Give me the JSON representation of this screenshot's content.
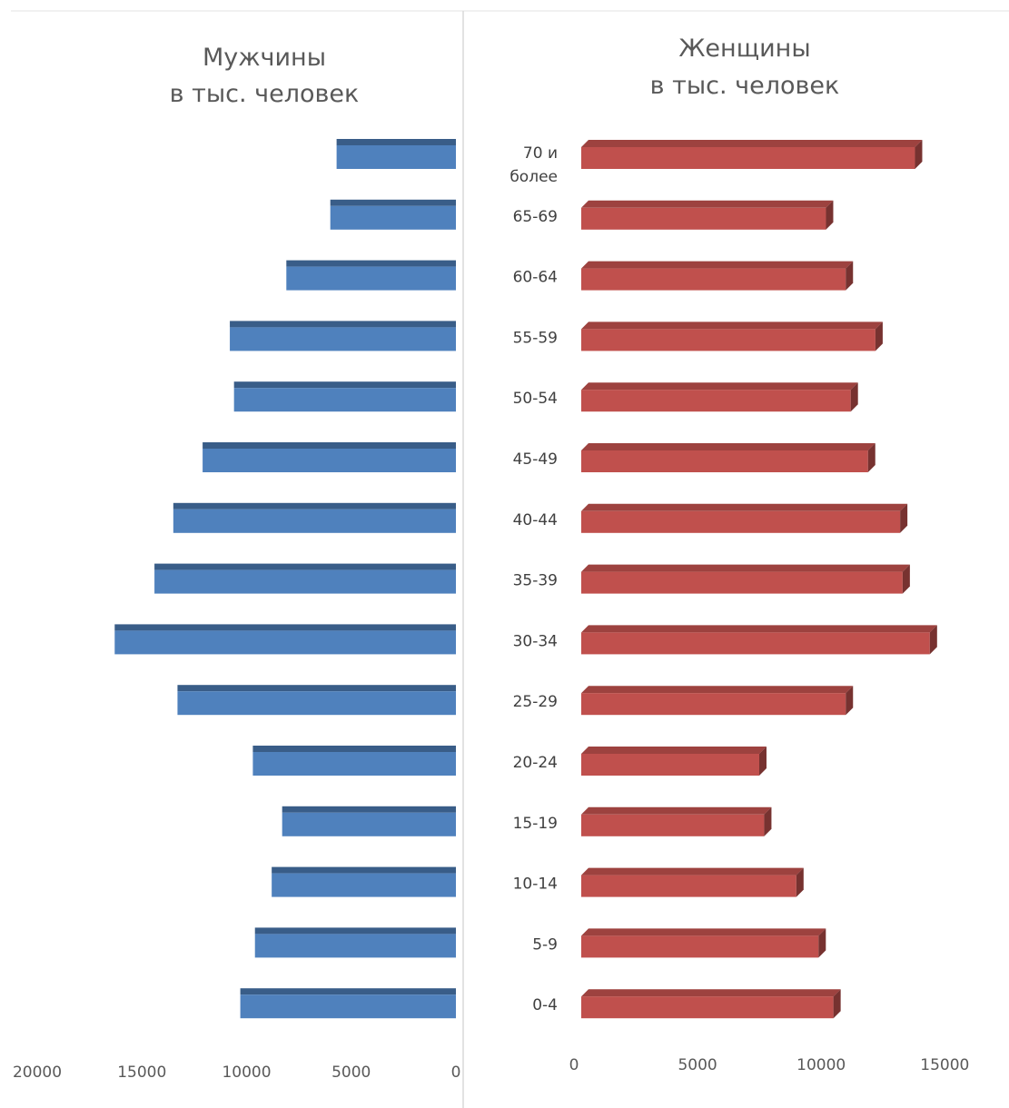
{
  "chart_data": [
    {
      "type": "bar",
      "orientation": "horizontal",
      "title": "Мужчины",
      "subtitle": "в тыс. человек",
      "categories": [
        "70 и более",
        "65-69",
        "60-64",
        "55-59",
        "50-54",
        "45-49",
        "40-44",
        "35-39",
        "30-34",
        "25-29",
        "20-24",
        "15-19",
        "10-14",
        "5-9",
        "0-4"
      ],
      "values": [
        5700,
        6000,
        8100,
        10800,
        10600,
        12100,
        13500,
        14400,
        16300,
        13300,
        9700,
        8300,
        8800,
        9600,
        10300
      ],
      "xlim": [
        20000,
        0
      ],
      "xticks": [
        "20000",
        "15000",
        "10000",
        "5000",
        "0"
      ],
      "color": "#4f81bd",
      "grid": false
    },
    {
      "type": "bar",
      "orientation": "horizontal",
      "title": "Женщины",
      "subtitle": "в тыс. человек",
      "categories": [
        "70 и более",
        "65-69",
        "60-64",
        "55-59",
        "50-54",
        "45-49",
        "40-44",
        "35-39",
        "30-34",
        "25-29",
        "20-24",
        "15-19",
        "10-14",
        "5-9",
        "0-4"
      ],
      "values": [
        13500,
        9900,
        10700,
        11900,
        10900,
        11600,
        12900,
        13000,
        14100,
        10700,
        7200,
        7400,
        8700,
        9600,
        10200
      ],
      "xlim": [
        0,
        17000
      ],
      "xticks": [
        "0",
        "5000",
        "10000",
        "15000"
      ],
      "color": "#c0504d",
      "grid": false
    }
  ]
}
